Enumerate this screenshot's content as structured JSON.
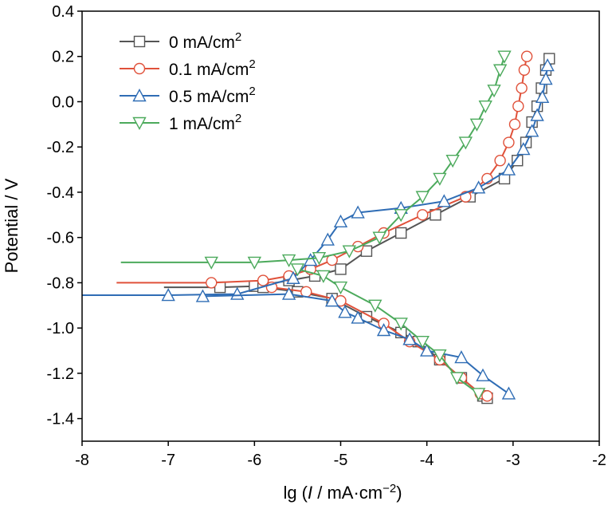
{
  "chart_data": {
    "type": "line",
    "xlabel": {
      "pre": "lg (",
      "italic": "I",
      "mid": " / mA·cm",
      "sup": "−2",
      "post": ")"
    },
    "ylabel": "Potential / V",
    "xlim": [
      -8,
      -2
    ],
    "ylim": [
      -1.5,
      0.4
    ],
    "xticks": [
      -8,
      -7,
      -6,
      -5,
      -4,
      -3,
      -2
    ],
    "xtick_labels": [
      "-8",
      "-7",
      "-6",
      "-5",
      "-4",
      "-3",
      "-2"
    ],
    "yticks": [
      0.4,
      0.2,
      0.0,
      -0.2,
      -0.4,
      -0.6,
      -0.8,
      -1.0,
      -1.2,
      -1.4
    ],
    "ytick_labels": [
      "0.4",
      "0.2",
      "0.0",
      "-0.2",
      "-0.4",
      "-0.6",
      "-0.8",
      "-1.0",
      "-1.2",
      "-1.4"
    ],
    "grid": false,
    "legend_position": "top-left",
    "series": [
      {
        "name": "0 mA/cm",
        "sup": "2",
        "color": "#555555",
        "marker": "square",
        "anodic": [
          [
            -7.05,
            -0.82
          ],
          [
            -6.4,
            -0.82
          ],
          [
            -6.0,
            -0.815
          ],
          [
            -5.6,
            -0.79
          ],
          [
            -5.3,
            -0.77
          ],
          [
            -5.0,
            -0.74
          ],
          [
            -4.7,
            -0.66
          ],
          [
            -4.3,
            -0.58
          ],
          [
            -3.9,
            -0.5
          ],
          [
            -3.5,
            -0.42
          ],
          [
            -3.1,
            -0.34
          ],
          [
            -2.95,
            -0.26
          ],
          [
            -2.85,
            -0.18
          ],
          [
            -2.78,
            -0.09
          ],
          [
            -2.72,
            -0.02
          ],
          [
            -2.67,
            0.06
          ],
          [
            -2.62,
            0.14
          ],
          [
            -2.58,
            0.19
          ]
        ],
        "cathodic": [
          [
            -5.9,
            -0.82
          ],
          [
            -5.5,
            -0.84
          ],
          [
            -5.1,
            -0.87
          ],
          [
            -4.7,
            -0.95
          ],
          [
            -4.3,
            -1.02
          ],
          [
            -4.1,
            -1.06
          ],
          [
            -3.85,
            -1.14
          ],
          [
            -3.6,
            -1.22
          ],
          [
            -3.35,
            -1.3
          ],
          [
            -3.3,
            -1.31
          ]
        ]
      },
      {
        "name": "0.1 mA/cm",
        "sup": "2",
        "color": "#e0513a",
        "marker": "circle",
        "anodic": [
          [
            -7.6,
            -0.8
          ],
          [
            -6.5,
            -0.8
          ],
          [
            -5.9,
            -0.79
          ],
          [
            -5.6,
            -0.77
          ],
          [
            -5.35,
            -0.74
          ],
          [
            -5.1,
            -0.7
          ],
          [
            -4.8,
            -0.64
          ],
          [
            -4.5,
            -0.58
          ],
          [
            -4.05,
            -0.5
          ],
          [
            -3.55,
            -0.42
          ],
          [
            -3.3,
            -0.34
          ],
          [
            -3.15,
            -0.26
          ],
          [
            -3.05,
            -0.18
          ],
          [
            -2.98,
            -0.1
          ],
          [
            -2.94,
            -0.02
          ],
          [
            -2.9,
            0.06
          ],
          [
            -2.87,
            0.14
          ],
          [
            -2.84,
            0.2
          ]
        ],
        "cathodic": [
          [
            -5.8,
            -0.82
          ],
          [
            -5.4,
            -0.84
          ],
          [
            -5.0,
            -0.88
          ],
          [
            -4.5,
            -0.98
          ],
          [
            -4.2,
            -1.06
          ],
          [
            -3.85,
            -1.14
          ],
          [
            -3.6,
            -1.22
          ],
          [
            -3.38,
            -1.29
          ],
          [
            -3.3,
            -1.3
          ]
        ]
      },
      {
        "name": "0.5 mA/cm",
        "sup": "2",
        "color": "#2f6db5",
        "marker": "triangle-up",
        "anodic": [
          [
            -8.0,
            -0.855
          ],
          [
            -7.0,
            -0.855
          ],
          [
            -6.2,
            -0.85
          ],
          [
            -5.55,
            -0.78
          ],
          [
            -5.35,
            -0.7
          ],
          [
            -5.15,
            -0.61
          ],
          [
            -5.0,
            -0.53
          ],
          [
            -4.8,
            -0.49
          ],
          [
            -4.3,
            -0.47
          ],
          [
            -3.8,
            -0.44
          ],
          [
            -3.4,
            -0.38
          ],
          [
            -3.05,
            -0.3
          ],
          [
            -2.88,
            -0.21
          ],
          [
            -2.78,
            -0.13
          ],
          [
            -2.72,
            -0.06
          ],
          [
            -2.66,
            0.02
          ],
          [
            -2.62,
            0.1
          ],
          [
            -2.6,
            0.16
          ]
        ],
        "cathodic": [
          [
            -6.6,
            -0.86
          ],
          [
            -5.6,
            -0.85
          ],
          [
            -5.1,
            -0.88
          ],
          [
            -4.95,
            -0.93
          ],
          [
            -4.8,
            -0.955
          ],
          [
            -4.5,
            -1.01
          ],
          [
            -4.2,
            -1.05
          ],
          [
            -4.0,
            -1.1
          ],
          [
            -3.6,
            -1.13
          ],
          [
            -3.35,
            -1.21
          ],
          [
            -3.05,
            -1.29
          ]
        ]
      },
      {
        "name": "1 mA/cm",
        "sup": "2",
        "color": "#4caa5c",
        "marker": "triangle-down",
        "anodic": [
          [
            -7.55,
            -0.71
          ],
          [
            -6.5,
            -0.71
          ],
          [
            -6.0,
            -0.71
          ],
          [
            -5.6,
            -0.7
          ],
          [
            -5.25,
            -0.69
          ],
          [
            -4.9,
            -0.66
          ],
          [
            -4.55,
            -0.6
          ],
          [
            -4.3,
            -0.5
          ],
          [
            -4.05,
            -0.42
          ],
          [
            -3.85,
            -0.34
          ],
          [
            -3.7,
            -0.26
          ],
          [
            -3.55,
            -0.18
          ],
          [
            -3.42,
            -0.1
          ],
          [
            -3.32,
            -0.02
          ],
          [
            -3.22,
            0.05
          ],
          [
            -3.15,
            0.14
          ],
          [
            -3.1,
            0.2
          ]
        ],
        "cathodic": [
          [
            -5.5,
            -0.74
          ],
          [
            -5.2,
            -0.77
          ],
          [
            -5.0,
            -0.82
          ],
          [
            -4.6,
            -0.9
          ],
          [
            -4.3,
            -0.98
          ],
          [
            -4.05,
            -1.06
          ],
          [
            -3.85,
            -1.12
          ],
          [
            -3.65,
            -1.22
          ],
          [
            -3.4,
            -1.29
          ]
        ]
      }
    ]
  }
}
